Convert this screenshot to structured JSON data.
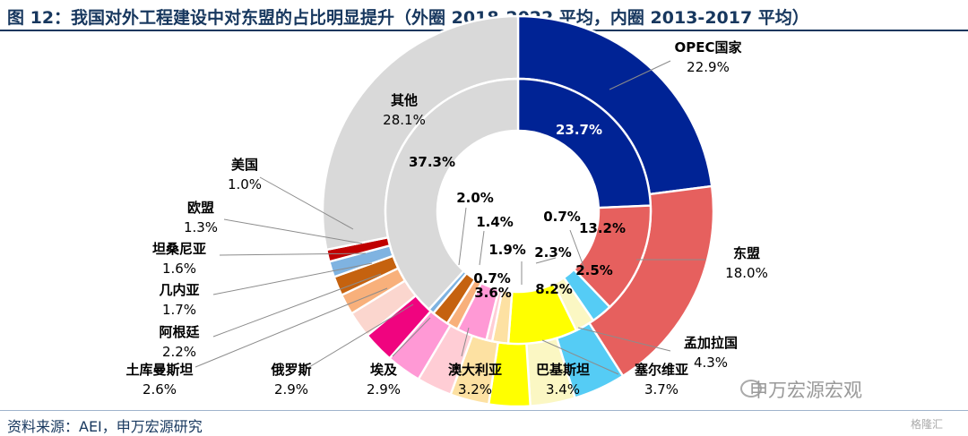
{
  "title": "图 12：我国对外工程建设中对东盟的占比明显提升（外圈 2018-2022 平均，内圈 2013-2017 平均）",
  "source": "资料来源：AEI，申万宏源研究",
  "watermark": "申万宏源宏观",
  "watermark_corner": "格隆汇",
  "chart_data": {
    "type": "pie",
    "variant": "double-donut",
    "rings": [
      {
        "name": "外圈 2018-2022 平均",
        "position": "outer"
      },
      {
        "name": "内圈 2013-2017 平均",
        "position": "inner"
      }
    ],
    "categories": [
      "OPEC国家",
      "东盟",
      "孟加拉国",
      "塞尔维亚",
      "巴基斯坦",
      "澳大利亚",
      "埃及",
      "俄罗斯",
      "土库曼斯坦",
      "阿根廷",
      "几内亚",
      "坦桑尼亚",
      "欧盟",
      "美国",
      "其他"
    ],
    "colors": [
      "#002395",
      "#e6605e",
      "#55ccf5",
      "#fbf7c3",
      "#ffff00",
      "#fde1a2",
      "#ffcdd5",
      "#ff99d5",
      "#f0047f",
      "#fbd6ce",
      "#f8b07b",
      "#c5620f",
      "#7fb3e1",
      "#c00000",
      "#d9d9d9"
    ],
    "series": [
      {
        "name": "外圈 2018-2022 平均",
        "values": [
          22.9,
          18.0,
          4.3,
          3.7,
          3.4,
          3.2,
          2.9,
          2.9,
          2.6,
          2.2,
          1.7,
          1.6,
          1.3,
          1.0,
          28.1
        ]
      },
      {
        "name": "内圈 2013-2017 平均",
        "values": [
          23.7,
          13.2,
          2.5,
          2.3,
          8.2,
          1.9,
          0.7,
          3.6,
          0.0,
          0.0,
          1.4,
          2.0,
          0.7,
          0.0,
          37.3
        ]
      }
    ],
    "outer_labels": [
      {
        "name": "OPEC国家",
        "pct": "22.9%"
      },
      {
        "name": "东盟",
        "pct": "18.0%"
      },
      {
        "name": "孟加拉国",
        "pct": "4.3%"
      },
      {
        "name": "塞尔维亚",
        "pct": "3.7%"
      },
      {
        "name": "巴基斯坦",
        "pct": "3.4%"
      },
      {
        "name": "澳大利亚",
        "pct": "3.2%"
      },
      {
        "name": "埃及",
        "pct": "2.9%"
      },
      {
        "name": "俄罗斯",
        "pct": "2.9%"
      },
      {
        "name": "土库曼斯坦",
        "pct": "2.6%"
      },
      {
        "name": "阿根廷",
        "pct": "2.2%"
      },
      {
        "name": "几内亚",
        "pct": "1.7%"
      },
      {
        "name": "坦桑尼亚",
        "pct": "1.6%"
      },
      {
        "name": "欧盟",
        "pct": "1.3%"
      },
      {
        "name": "美国",
        "pct": "1.0%"
      },
      {
        "name": "其他",
        "pct": "28.1%"
      }
    ],
    "inner_labels": [
      "23.7%",
      "13.2%",
      "0.7%",
      "2.5%",
      "2.3%",
      "8.2%",
      "1.9%",
      "3.6%",
      "0.7%",
      "1.4%",
      "2.0%",
      "37.3%"
    ]
  }
}
